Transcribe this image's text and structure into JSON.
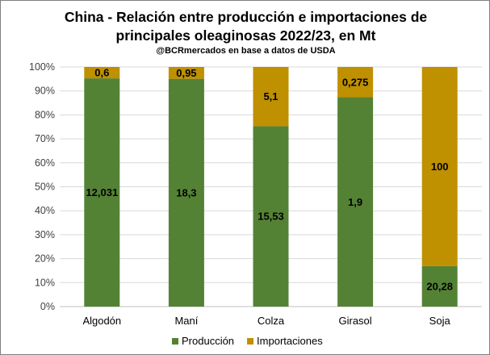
{
  "chart_data": {
    "type": "bar",
    "stacked": "percent",
    "title": "China - Relación entre producción e importaciones de",
    "title_line2": "principales oleaginosas 2022/23, en Mt",
    "subtitle": "@BCRmercados en base a datos de USDA",
    "categories": [
      "Algodón",
      "Maní",
      "Colza",
      "Girasol",
      "Soja"
    ],
    "series": [
      {
        "name": "Producción",
        "color": "#548235",
        "values": [
          12.031,
          18.3,
          15.53,
          1.9,
          20.28
        ],
        "labels": [
          "12,031",
          "18,3",
          "15,53",
          "1,9",
          "20,28"
        ]
      },
      {
        "name": "Importaciones",
        "color": "#BF9000",
        "values": [
          0.6,
          0.95,
          5.1,
          0.275,
          100
        ],
        "labels": [
          "0,6",
          "0,95",
          "5,1",
          "0,275",
          "100"
        ]
      }
    ],
    "y_ticks": [
      "0%",
      "10%",
      "20%",
      "30%",
      "40%",
      "50%",
      "60%",
      "70%",
      "80%",
      "90%",
      "100%"
    ],
    "ylim": [
      0,
      100
    ],
    "grid": true,
    "legend": "bottom"
  }
}
